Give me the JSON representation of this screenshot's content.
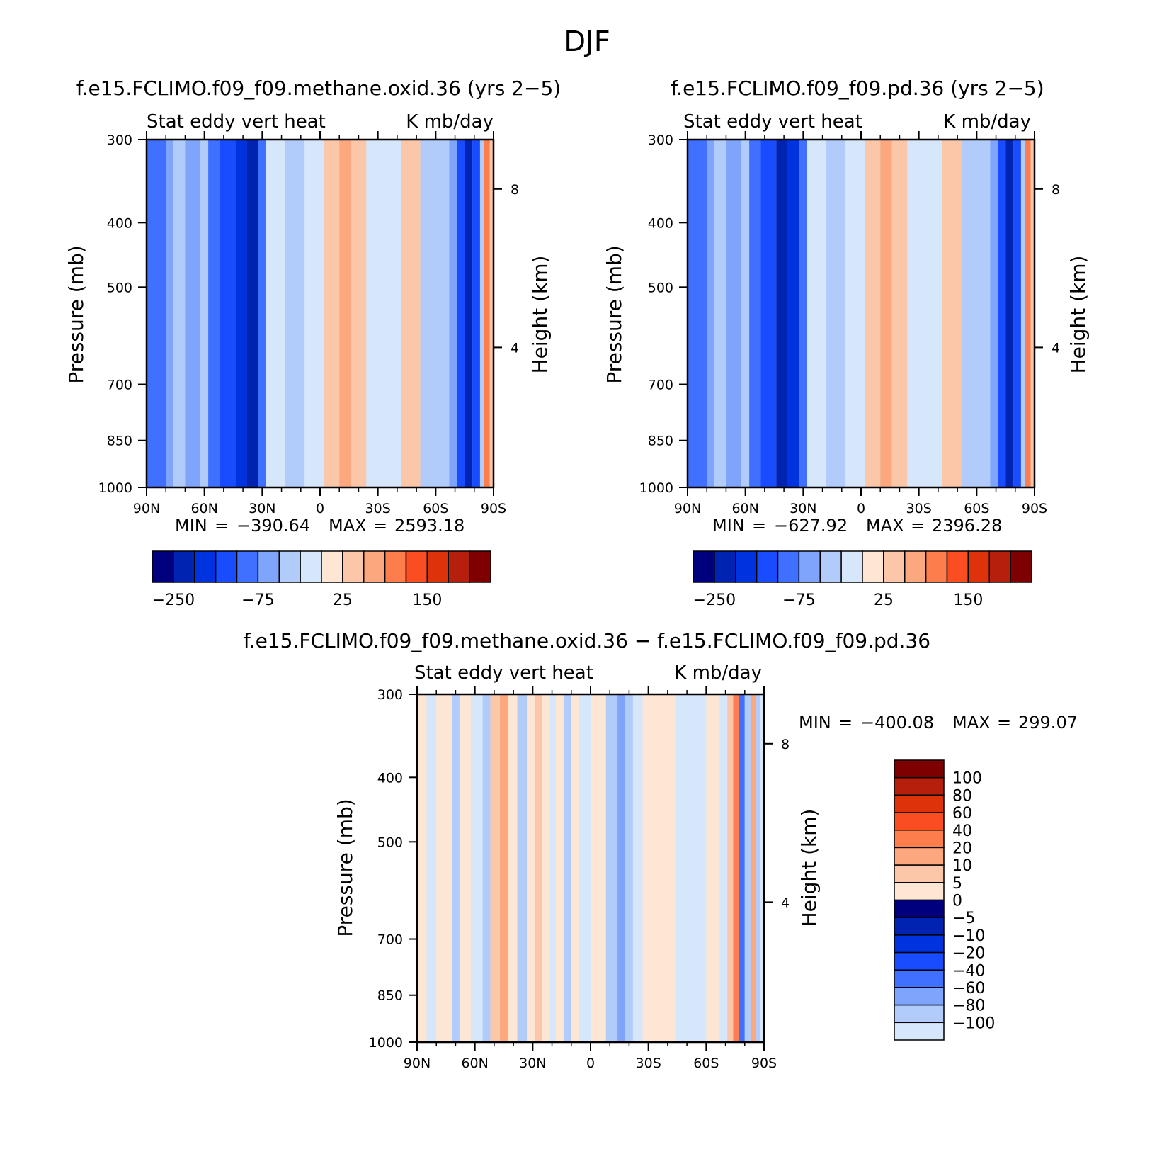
{
  "figure_title": "DJF",
  "colors": {
    "neg": [
      "#00007f",
      "#0023b2",
      "#0033e0",
      "#1a4cff",
      "#3f70ff",
      "#7ea4fb",
      "#b1cbfb",
      "#d6e6fb"
    ],
    "pos": [
      "#fde7d4",
      "#fcc6a8",
      "#fca77d",
      "#fd7d4c",
      "#fb4d22",
      "#de320b",
      "#b51f0b",
      "#7f0000"
    ]
  },
  "chart_data": [
    {
      "type": "heatmap",
      "title": "f.e15.FCLIMO.f09_f09.methane.oxid.36 (yrs 2−5)",
      "subtitle_left": "Stat eddy vert heat",
      "subtitle_right": "K mb/day",
      "ylabel": "Pressure (mb)",
      "ylabel_right": "Height (km)",
      "x_ticks": [
        "90N",
        "60N",
        "30N",
        "0",
        "30S",
        "60S",
        "90S"
      ],
      "y_ticks": [
        "300",
        "400",
        "500",
        "700",
        "850",
        "1000"
      ],
      "y_ticks_right": [
        "8",
        "4"
      ],
      "min_label": "MIN",
      "min_value": "−390.64",
      "max_label": "MAX",
      "max_value": "2593.18",
      "colorbar_labels": [
        "−250",
        "−75",
        "25",
        "150"
      ],
      "orientation": "horizontal colorbar",
      "bands": [
        {
          "lat": 90,
          "v": 3
        },
        {
          "lat": 80,
          "v": 2
        },
        {
          "lat": 76,
          "v": 1
        },
        {
          "lat": 70,
          "v": 2
        },
        {
          "lat": 62,
          "v": 1
        },
        {
          "lat": 58,
          "v": 3
        },
        {
          "lat": 52,
          "v": 4
        },
        {
          "lat": 44,
          "v": 5
        },
        {
          "lat": 38,
          "v": 6
        },
        {
          "lat": 32,
          "v": 3
        },
        {
          "lat": 28,
          "v": 0
        },
        {
          "lat": 18,
          "v": 1
        },
        {
          "lat": 8,
          "v": 0
        },
        {
          "lat": -2,
          "v": 9
        },
        {
          "lat": -10,
          "v": 10
        },
        {
          "lat": -16,
          "v": 9
        },
        {
          "lat": -24,
          "v": 0
        },
        {
          "lat": -42,
          "v": 9
        },
        {
          "lat": -52,
          "v": 1
        },
        {
          "lat": -67,
          "v": 2
        },
        {
          "lat": -71,
          "v": 4
        },
        {
          "lat": -75,
          "v": 6
        },
        {
          "lat": -79,
          "v": 4
        },
        {
          "lat": -83,
          "v": 1
        },
        {
          "lat": -85,
          "v": 11
        },
        {
          "lat": -88,
          "v": 9
        }
      ]
    },
    {
      "type": "heatmap",
      "title": "f.e15.FCLIMO.f09_f09.pd.36 (yrs 2−5)",
      "subtitle_left": "Stat eddy vert heat",
      "subtitle_right": "K mb/day",
      "ylabel": "Pressure (mb)",
      "ylabel_right": "Height (km)",
      "x_ticks": [
        "90N",
        "60N",
        "30N",
        "0",
        "30S",
        "60S",
        "90S"
      ],
      "y_ticks": [
        "300",
        "400",
        "500",
        "700",
        "850",
        "1000"
      ],
      "y_ticks_right": [
        "8",
        "4"
      ],
      "min_label": "MIN",
      "min_value": "−627.92",
      "max_label": "MAX",
      "max_value": "2396.28",
      "colorbar_labels": [
        "−250",
        "−75",
        "25",
        "150"
      ],
      "orientation": "horizontal colorbar",
      "bands": [
        {
          "lat": 90,
          "v": 3
        },
        {
          "lat": 80,
          "v": 2
        },
        {
          "lat": 76,
          "v": 1
        },
        {
          "lat": 70,
          "v": 2
        },
        {
          "lat": 62,
          "v": 1
        },
        {
          "lat": 58,
          "v": 3
        },
        {
          "lat": 52,
          "v": 4
        },
        {
          "lat": 44,
          "v": 6
        },
        {
          "lat": 38,
          "v": 5
        },
        {
          "lat": 32,
          "v": 3
        },
        {
          "lat": 28,
          "v": 0
        },
        {
          "lat": 18,
          "v": 1
        },
        {
          "lat": 8,
          "v": 0
        },
        {
          "lat": -2,
          "v": 9
        },
        {
          "lat": -10,
          "v": 10
        },
        {
          "lat": -16,
          "v": 9
        },
        {
          "lat": -24,
          "v": 0
        },
        {
          "lat": -42,
          "v": 9
        },
        {
          "lat": -52,
          "v": 1
        },
        {
          "lat": -67,
          "v": 2
        },
        {
          "lat": -71,
          "v": 4
        },
        {
          "lat": -75,
          "v": 6
        },
        {
          "lat": -79,
          "v": 4
        },
        {
          "lat": -83,
          "v": 1
        },
        {
          "lat": -85,
          "v": 11
        },
        {
          "lat": -88,
          "v": 9
        }
      ]
    },
    {
      "type": "heatmap",
      "title": "f.e15.FCLIMO.f09_f09.methane.oxid.36 − f.e15.FCLIMO.f09_f09.pd.36",
      "subtitle_left": "Stat eddy vert heat",
      "subtitle_right": "K mb/day",
      "ylabel": "Pressure (mb)",
      "ylabel_right": "Height (km)",
      "x_ticks": [
        "90N",
        "60N",
        "30N",
        "0",
        "30S",
        "60S",
        "90S"
      ],
      "y_ticks": [
        "300",
        "400",
        "500",
        "700",
        "850",
        "1000"
      ],
      "y_ticks_right": [
        "8",
        "4"
      ],
      "min_label": "MIN",
      "min_value": "−400.08",
      "max_label": "MAX",
      "max_value": "299.07",
      "colorbar_labels": [
        "100",
        "80",
        "60",
        "40",
        "20",
        "10",
        "5",
        "0",
        "−5",
        "−10",
        "−20",
        "−40",
        "−60",
        "−80",
        "−100"
      ],
      "orientation": "vertical colorbar",
      "bands": [
        {
          "lat": 90,
          "v": 8
        },
        {
          "lat": 85,
          "v": 0
        },
        {
          "lat": 80,
          "v": 8
        },
        {
          "lat": 72,
          "v": 1
        },
        {
          "lat": 68,
          "v": 8
        },
        {
          "lat": 62,
          "v": 0
        },
        {
          "lat": 56,
          "v": 1
        },
        {
          "lat": 52,
          "v": 9
        },
        {
          "lat": 47,
          "v": 10
        },
        {
          "lat": 43,
          "v": 8
        },
        {
          "lat": 38,
          "v": 1
        },
        {
          "lat": 33,
          "v": 8
        },
        {
          "lat": 29,
          "v": 9
        },
        {
          "lat": 25,
          "v": 8
        },
        {
          "lat": 21,
          "v": 0
        },
        {
          "lat": 18,
          "v": 8
        },
        {
          "lat": 14,
          "v": 1
        },
        {
          "lat": 10,
          "v": 8
        },
        {
          "lat": 6,
          "v": 0
        },
        {
          "lat": 0,
          "v": 8
        },
        {
          "lat": -8,
          "v": 1
        },
        {
          "lat": -14,
          "v": 2
        },
        {
          "lat": -18,
          "v": 1
        },
        {
          "lat": -22,
          "v": 0
        },
        {
          "lat": -27,
          "v": 8
        },
        {
          "lat": -44,
          "v": 0
        },
        {
          "lat": -60,
          "v": 8
        },
        {
          "lat": -67,
          "v": 0
        },
        {
          "lat": -71,
          "v": 9
        },
        {
          "lat": -74,
          "v": 11
        },
        {
          "lat": -77,
          "v": 3
        },
        {
          "lat": -80,
          "v": 1
        },
        {
          "lat": -83,
          "v": 10
        },
        {
          "lat": -86,
          "v": 1
        },
        {
          "lat": -88,
          "v": 0
        }
      ]
    }
  ]
}
